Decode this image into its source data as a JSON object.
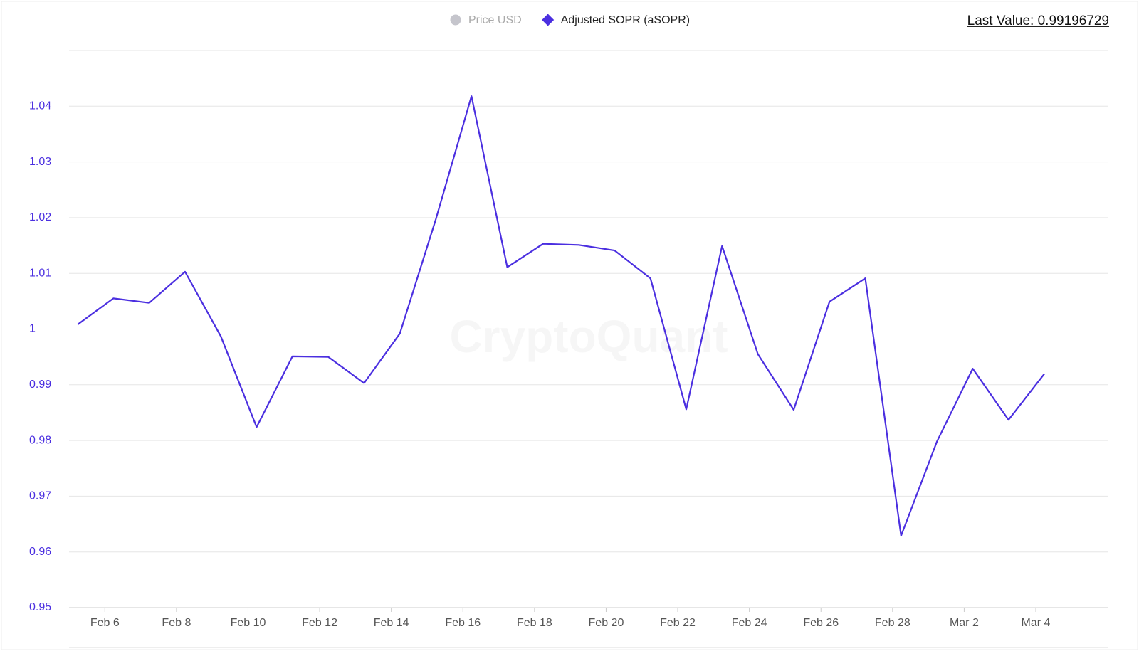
{
  "chart_data": {
    "type": "line",
    "legend": [
      {
        "name": "Price USD",
        "color": "#c5c5cc",
        "marker": "circle"
      },
      {
        "name": "Adjusted SOPR (aSOPR)",
        "color": "#4b2fe0",
        "marker": "diamond"
      }
    ],
    "last_value_label": "Last Value: 0.99196729",
    "watermark": "CryptoQuant",
    "categories": [
      null,
      "Feb 6",
      null,
      "Feb 8",
      null,
      "Feb 10",
      null,
      "Feb 12",
      null,
      "Feb 14",
      null,
      "Feb 16",
      null,
      "Feb 18",
      null,
      "Feb 20",
      null,
      "Feb 22",
      null,
      "Feb 24",
      null,
      "Feb 26",
      null,
      "Feb 28",
      null,
      "Mar 2",
      null,
      "Mar 4"
    ],
    "series": [
      {
        "name": "Adjusted SOPR (aSOPR)",
        "color": "#4b2fe0",
        "values": [
          1.0008,
          1.0055,
          1.0047,
          1.0103,
          0.9987,
          0.9824,
          0.9951,
          0.995,
          0.9903,
          0.9992,
          1.0196,
          1.0418,
          1.0111,
          1.0153,
          1.0151,
          1.0141,
          1.0091,
          0.9856,
          1.0149,
          0.9955,
          0.9855,
          1.0049,
          1.0091,
          0.9629,
          0.9798,
          0.9929,
          0.9837,
          0.99196729
        ]
      }
    ],
    "ylim": [
      0.95,
      1.05
    ],
    "yticks": [
      0.95,
      0.96,
      0.97,
      0.98,
      0.99,
      1,
      1.01,
      1.02,
      1.03,
      1.04
    ],
    "reference_line": 1,
    "grid": true
  }
}
